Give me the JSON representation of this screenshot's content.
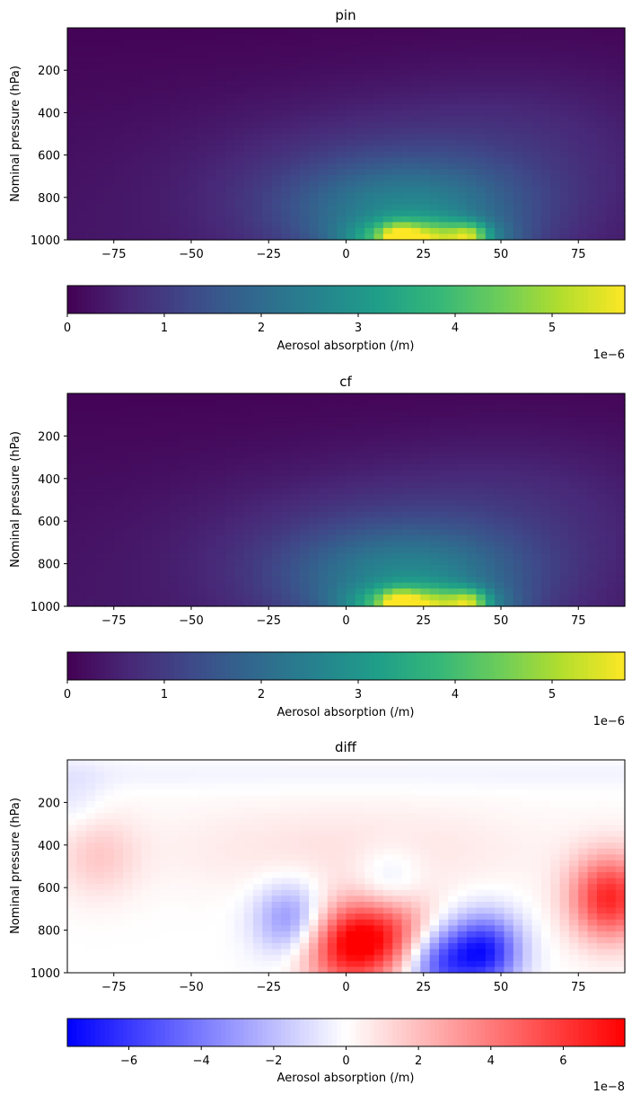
{
  "chart_data": [
    {
      "type": "heatmap",
      "title": "pin",
      "xlabel": "",
      "ylabel": "Nominal pressure (hPa)",
      "xlim": [
        -90,
        90
      ],
      "ylim": [
        1000,
        0
      ],
      "xticks": [
        -75,
        -50,
        -25,
        0,
        25,
        50,
        75
      ],
      "yticks": [
        200,
        400,
        600,
        800,
        1000
      ],
      "colormap": "viridis",
      "colorbar": {
        "label": "Aerosol absorption (/m)",
        "range": [
          0,
          5.75
        ],
        "ticks": [
          0,
          1,
          2,
          3,
          4,
          5
        ],
        "offset": "1e−6",
        "placement": "bottom"
      },
      "features": {
        "background": 0.05,
        "hotspot_lat": 25,
        "hotspot_pressure": 1000,
        "hotspot_peak": 5.7,
        "secondary_peaks_lat": [
          17,
          40
        ]
      }
    },
    {
      "type": "heatmap",
      "title": "cf",
      "xlabel": "",
      "ylabel": "Nominal pressure (hPa)",
      "xlim": [
        -90,
        90
      ],
      "ylim": [
        1000,
        0
      ],
      "xticks": [
        -75,
        -50,
        -25,
        0,
        25,
        50,
        75
      ],
      "yticks": [
        200,
        400,
        600,
        800,
        1000
      ],
      "colormap": "viridis",
      "colorbar": {
        "label": "Aerosol absorption (/m)",
        "range": [
          0,
          5.75
        ],
        "ticks": [
          0,
          1,
          2,
          3,
          4,
          5
        ],
        "offset": "1e−6",
        "placement": "bottom"
      },
      "features": {
        "background": 0.05,
        "hotspot_lat": 25,
        "hotspot_pressure": 1000,
        "hotspot_peak": 5.7,
        "secondary_peaks_lat": [
          17,
          40
        ]
      }
    },
    {
      "type": "heatmap",
      "title": "diff",
      "xlabel": "",
      "ylabel": "Nominal pressure (hPa)",
      "xlim": [
        -90,
        90
      ],
      "ylim": [
        1000,
        0
      ],
      "xticks": [
        -75,
        -50,
        -25,
        0,
        25,
        50,
        75
      ],
      "yticks": [
        200,
        400,
        600,
        800,
        1000
      ],
      "colormap": "bwr",
      "colorbar": {
        "label": "Aerosol absorption (/m)",
        "range": [
          -7.7,
          7.7
        ],
        "ticks": [
          -6,
          -4,
          -2,
          0,
          2,
          4,
          6
        ],
        "offset": "1e−8",
        "placement": "bottom"
      },
      "features": {
        "positive_regions": [
          {
            "lat": 85,
            "pressure": 650,
            "value": 6.5
          },
          {
            "lat": 5,
            "pressure": 850,
            "value": 6.0
          },
          {
            "lat": 18,
            "pressure": 800,
            "value": 3.5
          },
          {
            "lat": -5,
            "pressure": 900,
            "value": 3.0
          },
          {
            "lat": -80,
            "pressure": 450,
            "value": 1.5
          }
        ],
        "negative_regions": [
          {
            "lat": 45,
            "pressure": 900,
            "value": -6.5
          },
          {
            "lat": 30,
            "pressure": 950,
            "value": -5.0
          },
          {
            "lat": -18,
            "pressure": 750,
            "value": -3.5
          },
          {
            "lat": 14,
            "pressure": 600,
            "value": -2.0
          },
          {
            "lat": -88,
            "pressure": 180,
            "value": -0.8
          }
        ]
      }
    }
  ]
}
